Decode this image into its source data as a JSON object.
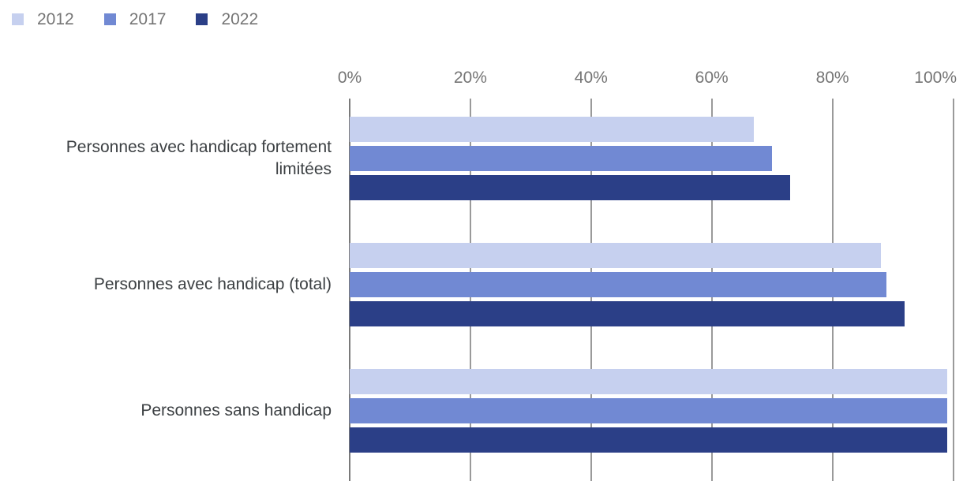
{
  "legend": {
    "items": [
      {
        "label": "2012",
        "color": "#c6d0ef"
      },
      {
        "label": "2017",
        "color": "#7189d3"
      },
      {
        "label": "2022",
        "color": "#2b3f87"
      }
    ]
  },
  "chart_data": {
    "type": "bar",
    "orientation": "horizontal",
    "unit": "%",
    "categories": [
      "Personnes avec handicap fortement limitées",
      "Personnes avec handicap (total)",
      "Personnes sans handicap"
    ],
    "series": [
      {
        "name": "2012",
        "color": "#c6d0ef",
        "values": [
          67,
          88,
          99
        ]
      },
      {
        "name": "2017",
        "color": "#7189d3",
        "values": [
          70,
          89,
          99
        ]
      },
      {
        "name": "2022",
        "color": "#2b3f87",
        "values": [
          73,
          92,
          99
        ]
      }
    ],
    "x_ticks": [
      "0%",
      "20%",
      "40%",
      "60%",
      "80%",
      "100%"
    ],
    "xlim": [
      0,
      100
    ],
    "grid": true,
    "axis_position": "top",
    "legend_position": "top-left",
    "colors": {
      "gridline": "#9a9a9a",
      "axis_line": "#7a7a7a",
      "tick_label": "#757575",
      "category_label": "#3c4043",
      "legend_label": "#757575",
      "background": "#ffffff"
    }
  }
}
